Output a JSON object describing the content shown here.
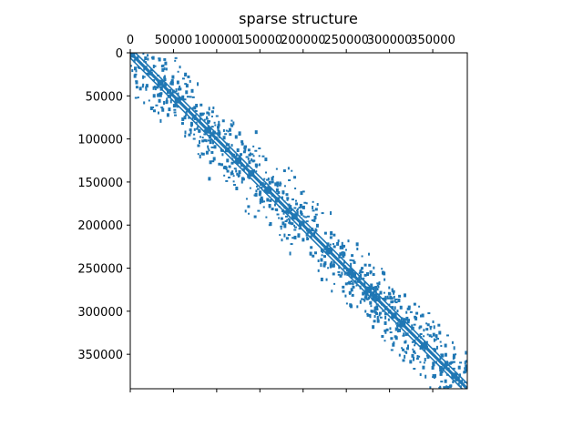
{
  "chart_data": {
    "type": "spy",
    "title": "sparse structure",
    "xlabel": "",
    "ylabel": "",
    "xlim": [
      0,
      390000
    ],
    "ylim": [
      390000,
      0
    ],
    "x_ticks": [
      {
        "value": 0,
        "label": "0"
      },
      {
        "value": 50000,
        "label": "50000"
      },
      {
        "value": 100000,
        "label": "100000"
      },
      {
        "value": 150000,
        "label": "150000"
      },
      {
        "value": 200000,
        "label": "200000"
      },
      {
        "value": 250000,
        "label": "250000"
      },
      {
        "value": 300000,
        "label": "300000"
      },
      {
        "value": 350000,
        "label": "350000"
      }
    ],
    "y_ticks": [
      {
        "value": 0,
        "label": "0"
      },
      {
        "value": 50000,
        "label": "50000"
      },
      {
        "value": 100000,
        "label": "100000"
      },
      {
        "value": 150000,
        "label": "150000"
      },
      {
        "value": 200000,
        "label": "200000"
      },
      {
        "value": 250000,
        "label": "250000"
      },
      {
        "value": 300000,
        "label": "300000"
      },
      {
        "value": 350000,
        "label": "350000"
      }
    ],
    "x_axis_position": "top",
    "grid": false,
    "marker_color": "#1f77b4",
    "diagonal": {
      "from": 0,
      "to": 390000
    },
    "sub_diagonals": [
      {
        "offset": -6000,
        "from": 0,
        "to": 390000
      },
      {
        "offset": 6000,
        "from": 0,
        "to": 390000
      }
    ],
    "diagonal_blocks": [
      2000,
      35000,
      55000,
      90000,
      125000,
      140000,
      160000,
      190000,
      230000,
      255000,
      275000,
      315000,
      340000,
      375000
    ],
    "scatter_band": {
      "half_width": 60000,
      "count": 520,
      "seed": 7
    }
  }
}
